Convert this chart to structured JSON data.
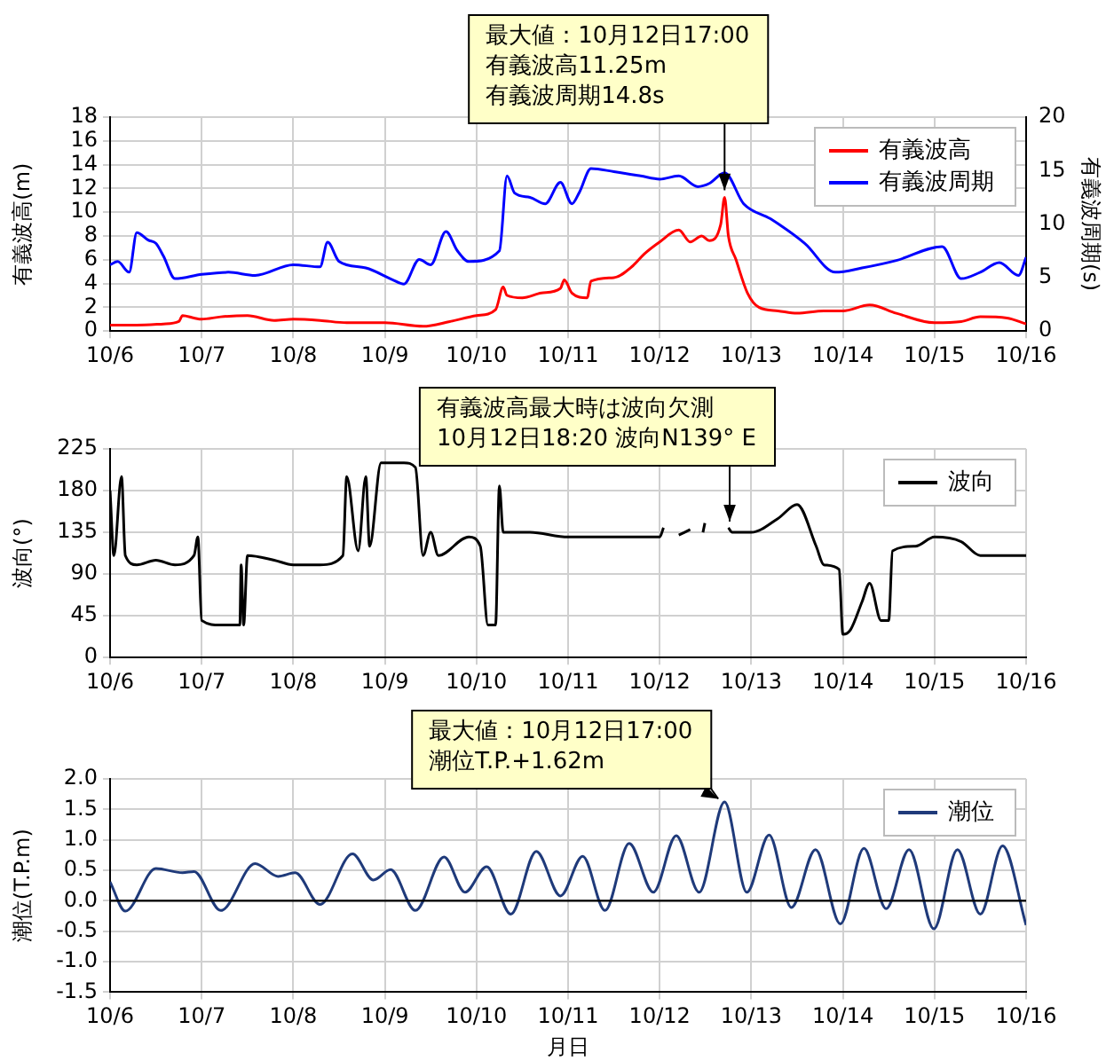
{
  "chart_data": [
    {
      "type": "line",
      "ylabel": "有義波高(m)",
      "y2label": "有義波周期(s)",
      "annotations": [
        {
          "text": "最大値：10月12日17:00\n有義波高11.25m\n有義波周期14.8s",
          "x": "--10-12T17:00",
          "y": 11.25
        }
      ],
      "series": [
        {
          "name": "有義波高",
          "color": "#ff0000",
          "x": [
            "--10-06T00:00",
            "--10-06T07:00",
            "--10-06T14:00",
            "--10-06T18:00",
            "--10-06T19:00",
            "--10-06T22:00",
            "--10-07T00:00",
            "--10-07T05:00",
            "--10-07T12:00",
            "--10-07T19:00",
            "--10-08T00:00",
            "--10-08T07:00",
            "--10-08T14:00",
            "--10-09T00:00",
            "--10-09T10:00",
            "--10-09T17:00",
            "--10-10T00:00",
            "--10-10T05:00",
            "--10-10T07:00",
            "--10-10T08:00",
            "--10-10T12:00",
            "--10-10T17:00",
            "--10-10T22:00",
            "--10-10T23:00",
            "--10-11T01:00",
            "--10-11T05:00",
            "--10-11T06:00",
            "--10-11T12:00",
            "--10-11T17:00",
            "--10-11T20:00",
            "--10-12T00:00",
            "--10-12T05:00",
            "--10-12T08:00",
            "--10-12T11:00",
            "--10-12T13:00",
            "--10-12T16:00",
            "--10-12T17:00",
            "--10-12T18:00",
            "--10-12T20:00",
            "--10-12T23:00",
            "--10-13T02:00",
            "--10-13T07:00",
            "--10-13T12:00",
            "--10-13T19:00",
            "--10-14T00:00",
            "--10-14T07:00",
            "--10-14T14:00",
            "--10-15T00:00",
            "--10-15T07:00",
            "--10-15T12:00",
            "--10-15T19:00",
            "--10-16T00:00"
          ],
          "values": [
            0.5,
            0.5,
            0.6,
            0.8,
            1.3,
            1.1,
            1.0,
            1.2,
            1.3,
            0.9,
            1.0,
            0.9,
            0.7,
            0.7,
            0.4,
            0.8,
            1.3,
            1.8,
            3.7,
            3.0,
            2.8,
            3.2,
            3.6,
            4.3,
            3.2,
            2.8,
            4.2,
            4.5,
            5.5,
            6.5,
            7.5,
            8.5,
            7.5,
            8.0,
            7.6,
            9.0,
            11.25,
            8.0,
            6.0,
            3.2,
            2.0,
            1.7,
            1.5,
            1.7,
            1.7,
            2.2,
            1.5,
            0.7,
            0.8,
            1.2,
            1.1,
            0.6
          ]
        },
        {
          "name": "有義波周期",
          "color": "#0000ff",
          "axis": "y2",
          "x": [
            "--10-06T00:00",
            "--10-06T02:00",
            "--10-06T05:00",
            "--10-06T07:00",
            "--10-06T10:00",
            "--10-06T12:00",
            "--10-06T14:00",
            "--10-06T17:00",
            "--10-07T00:00",
            "--10-07T07:00",
            "--10-07T14:00",
            "--10-08T00:00",
            "--10-08T07:00",
            "--10-08T09:00",
            "--10-08T12:00",
            "--10-08T19:00",
            "--10-09T02:00",
            "--10-09T05:00",
            "--10-09T09:00",
            "--10-09T12:00",
            "--10-09T16:00",
            "--10-09T19:00",
            "--10-09T22:00",
            "--10-10T06:00",
            "--10-10T08:00",
            "--10-10T10:00",
            "--10-10T14:00",
            "--10-10T18:00",
            "--10-10T22:00",
            "--10-11T01:00",
            "--10-11T03:00",
            "--10-11T06:00",
            "--10-11T12:00",
            "--10-11T19:00",
            "--10-12T00:00",
            "--10-12T05:00",
            "--10-12T10:00",
            "--10-12T13:00",
            "--10-12T17:00",
            "--10-12T22:00",
            "--10-13T05:00",
            "--10-13T14:00",
            "--10-13T22:00",
            "--10-14T05:00",
            "--10-14T14:00",
            "--10-15T02:00",
            "--10-15T07:00",
            "--10-15T12:00",
            "--10-15T17:00",
            "--10-15T22:00",
            "--10-16T00:00"
          ],
          "values": [
            6.2,
            6.5,
            5.5,
            9.2,
            8.5,
            8.2,
            7.0,
            4.9,
            5.3,
            5.5,
            5.2,
            6.2,
            6.0,
            8.3,
            6.5,
            5.9,
            4.8,
            4.4,
            6.7,
            6.2,
            9.3,
            7.5,
            6.5,
            7.5,
            14.5,
            12.9,
            12.5,
            11.9,
            13.9,
            11.9,
            13.0,
            15.2,
            14.9,
            14.5,
            14.2,
            14.5,
            13.5,
            13.8,
            14.8,
            11.9,
            10.5,
            8.2,
            5.5,
            5.9,
            6.6,
            7.9,
            4.9,
            5.5,
            6.4,
            5.2,
            6.9
          ]
        }
      ],
      "xlim": [
        "--10-06",
        "--10-16"
      ],
      "xticks": [
        {
          "value": "--10-06",
          "label": "10/6"
        },
        {
          "value": "--10-07",
          "label": "10/7"
        },
        {
          "value": "--10-08",
          "label": "10/8"
        },
        {
          "value": "--10-09",
          "label": "10/9"
        },
        {
          "value": "--10-10",
          "label": "10/10"
        },
        {
          "value": "--10-11",
          "label": "10/11"
        },
        {
          "value": "--10-12",
          "label": "10/12"
        },
        {
          "value": "--10-13",
          "label": "10/13"
        },
        {
          "value": "--10-14",
          "label": "10/14"
        },
        {
          "value": "--10-15",
          "label": "10/15"
        },
        {
          "value": "--10-16",
          "label": "10/16"
        }
      ],
      "ylim": [
        0,
        18
      ],
      "yticks": [
        0,
        2,
        4,
        6,
        8,
        10,
        12,
        14,
        16,
        18
      ],
      "y2lim": [
        0,
        20
      ],
      "y2ticks": [
        0,
        5,
        10,
        15,
        20
      ],
      "grid": true,
      "legend": "top right",
      "marker": "none",
      "line_style": "solid"
    },
    {
      "type": "line",
      "ylabel": "波向(°)",
      "annotations": [
        {
          "text": "有義波高最大時は波向欠測\n10月12日18:20 波向N139° E",
          "x": "--10-12T18:20",
          "y": 139
        }
      ],
      "series": [
        {
          "name": "波向",
          "color": "#000000",
          "x": [
            "--10-06T00:00",
            "--10-06T01:00",
            "--10-06T03:00",
            "--10-06T04:00",
            "--10-06T07:00",
            "--10-06T12:00",
            "--10-06T17:00",
            "--10-06T22:00",
            "--10-06T23:00",
            "--10-07T00:00",
            "--10-07T05:00",
            "--10-07T10:00",
            "--10-07T10:20",
            "--10-07T11:00",
            "--10-07T12:00",
            "--10-07T19:00",
            "--10-08T00:00",
            "--10-08T07:00",
            "--10-08T13:00",
            "--10-08T14:00",
            "--10-08T17:00",
            "--10-08T19:00",
            "--10-08T20:00",
            "--10-08T23:00",
            "--10-09T05:00",
            "--10-09T08:00",
            "--10-09T10:00",
            "--10-09T12:00",
            "--10-09T14:00",
            "--10-09T22:00",
            "--10-10T01:00",
            "--10-10T03:00",
            "--10-10T05:00",
            "--10-10T06:00",
            "--10-10T07:00",
            "--10-10T14:00",
            "--10-11T00:00",
            "--10-11T12:00",
            "--10-12T00:00",
            "--10-12T01:00",
            "--10-12T01:30",
            "--10-12T05:00",
            "--10-12T08:00",
            "--10-12T08:10",
            "--10-12T11:20",
            "--10-12T11:50",
            "--10-12T12:00",
            "--10-12T18:00",
            "--10-12T19:00",
            "--10-13T00:00",
            "--10-13T07:00",
            "--10-13T12:00",
            "--10-13T17:00",
            "--10-13T19:00",
            "--10-13T23:00",
            "--10-14T00:00",
            "--10-14T02:00",
            "--10-14T05:00",
            "--10-14T07:00",
            "--10-14T10:00",
            "--10-14T12:00",
            "--10-14T13:00",
            "--10-14T19:00",
            "--10-15T00:00",
            "--10-15T07:00",
            "--10-15T12:00",
            "--10-16T00:00"
          ],
          "values": [
            180,
            110,
            195,
            110,
            100,
            105,
            100,
            110,
            130,
            40,
            35,
            35,
            100,
            35,
            110,
            105,
            100,
            100,
            110,
            195,
            115,
            195,
            120,
            210,
            210,
            205,
            110,
            135,
            110,
            130,
            120,
            35,
            35,
            185,
            135,
            135,
            130,
            130,
            130,
            140,
            null,
            132,
            138,
            null,
            135,
            145,
            null,
            140,
            135,
            135,
            150,
            165,
            120,
            100,
            95,
            25,
            30,
            60,
            80,
            40,
            40,
            115,
            120,
            130,
            125,
            110,
            110
          ]
        }
      ],
      "xlim": [
        "--10-06",
        "--10-16"
      ],
      "xticks": [
        {
          "value": "--10-06",
          "label": "10/6"
        },
        {
          "value": "--10-07",
          "label": "10/7"
        },
        {
          "value": "--10-08",
          "label": "10/8"
        },
        {
          "value": "--10-09",
          "label": "10/9"
        },
        {
          "value": "--10-10",
          "label": "10/10"
        },
        {
          "value": "--10-11",
          "label": "10/11"
        },
        {
          "value": "--10-12",
          "label": "10/12"
        },
        {
          "value": "--10-13",
          "label": "10/13"
        },
        {
          "value": "--10-14",
          "label": "10/14"
        },
        {
          "value": "--10-15",
          "label": "10/15"
        },
        {
          "value": "--10-16",
          "label": "10/16"
        }
      ],
      "ylim": [
        0,
        225
      ],
      "yticks": [
        0,
        45,
        90,
        135,
        180,
        225
      ],
      "grid": true,
      "legend": "top right",
      "marker": "none",
      "line_style": "solid"
    },
    {
      "type": "line",
      "ylabel": "潮位(T.P.m)",
      "xlabel": "月日",
      "annotations": [
        {
          "text": "最大値：10月12日17:00\n潮位T.P.+1.62m",
          "x": "--10-12T17:00",
          "y": 1.62
        }
      ],
      "series": [
        {
          "name": "潮位",
          "color": "#1f3a7a",
          "x": [
            "--10-06T00:00",
            "--10-06T04:00",
            "--10-06T12:00",
            "--10-06T19:00",
            "--10-06T22:00",
            "--10-07T05:00",
            "--10-07T14:00",
            "--10-07T20:00",
            "--10-08T00:30",
            "--10-08T07:00",
            "--10-08T15:30",
            "--10-08T21:00",
            "--10-09T01:30",
            "--10-09T08:00",
            "--10-09T15:30",
            "--10-09T21:00",
            "--10-10T02:40",
            "--10-10T09:00",
            "--10-10T15:40",
            "--10-10T22:00",
            "--10-11T03:50",
            "--10-11T09:40",
            "--10-11T16:00",
            "--10-11T22:20",
            "--10-12T04:20",
            "--10-12T10:20",
            "--10-12T17:00",
            "--10-12T22:50",
            "--10-13T04:40",
            "--10-13T10:30",
            "--10-13T16:50",
            "--10-13T23:20",
            "--10-14T05:30",
            "--10-14T11:20",
            "--10-14T17:20",
            "--10-14T23:50",
            "--10-15T06:00",
            "--10-15T12:00",
            "--10-15T17:50",
            "--10-16T00:00"
          ],
          "values": [
            0.31,
            -0.17,
            0.53,
            0.46,
            0.48,
            -0.16,
            0.61,
            0.4,
            0.46,
            -0.06,
            0.77,
            0.34,
            0.51,
            -0.16,
            0.72,
            0.14,
            0.56,
            -0.22,
            0.81,
            0.08,
            0.73,
            -0.16,
            0.94,
            0.14,
            1.07,
            0.14,
            1.62,
            0.14,
            1.08,
            -0.11,
            0.84,
            -0.38,
            0.86,
            -0.13,
            0.84,
            -0.46,
            0.84,
            -0.22,
            0.9,
            -0.4
          ]
        }
      ],
      "xlim": [
        "--10-06",
        "--10-16"
      ],
      "xticks": [
        {
          "value": "--10-06",
          "label": "10/6"
        },
        {
          "value": "--10-07",
          "label": "10/7"
        },
        {
          "value": "--10-08",
          "label": "10/8"
        },
        {
          "value": "--10-09",
          "label": "10/9"
        },
        {
          "value": "--10-10",
          "label": "10/10"
        },
        {
          "value": "--10-11",
          "label": "10/11"
        },
        {
          "value": "--10-12",
          "label": "10/12"
        },
        {
          "value": "--10-13",
          "label": "10/13"
        },
        {
          "value": "--10-14",
          "label": "10/14"
        },
        {
          "value": "--10-15",
          "label": "10/15"
        },
        {
          "value": "--10-16",
          "label": "10/16"
        }
      ],
      "ylim": [
        -1.5,
        2.0
      ],
      "yticks": [
        {
          "value": -1.5,
          "label": "-1.5"
        },
        {
          "value": -1,
          "label": "-1.0"
        },
        {
          "value": -0.5,
          "label": "-0.5"
        },
        {
          "value": 0,
          "label": "0.0"
        },
        {
          "value": 0.5,
          "label": "0.5"
        },
        {
          "value": 1,
          "label": "1.0"
        },
        {
          "value": 1.5,
          "label": "1.5"
        },
        {
          "value": 2,
          "label": "2.0"
        }
      ],
      "ref_lines": [
        {
          "axis": "y",
          "value": 0,
          "color": "#000000"
        }
      ],
      "grid": true,
      "legend": "top right",
      "marker": "none",
      "line_style": "solid"
    }
  ]
}
